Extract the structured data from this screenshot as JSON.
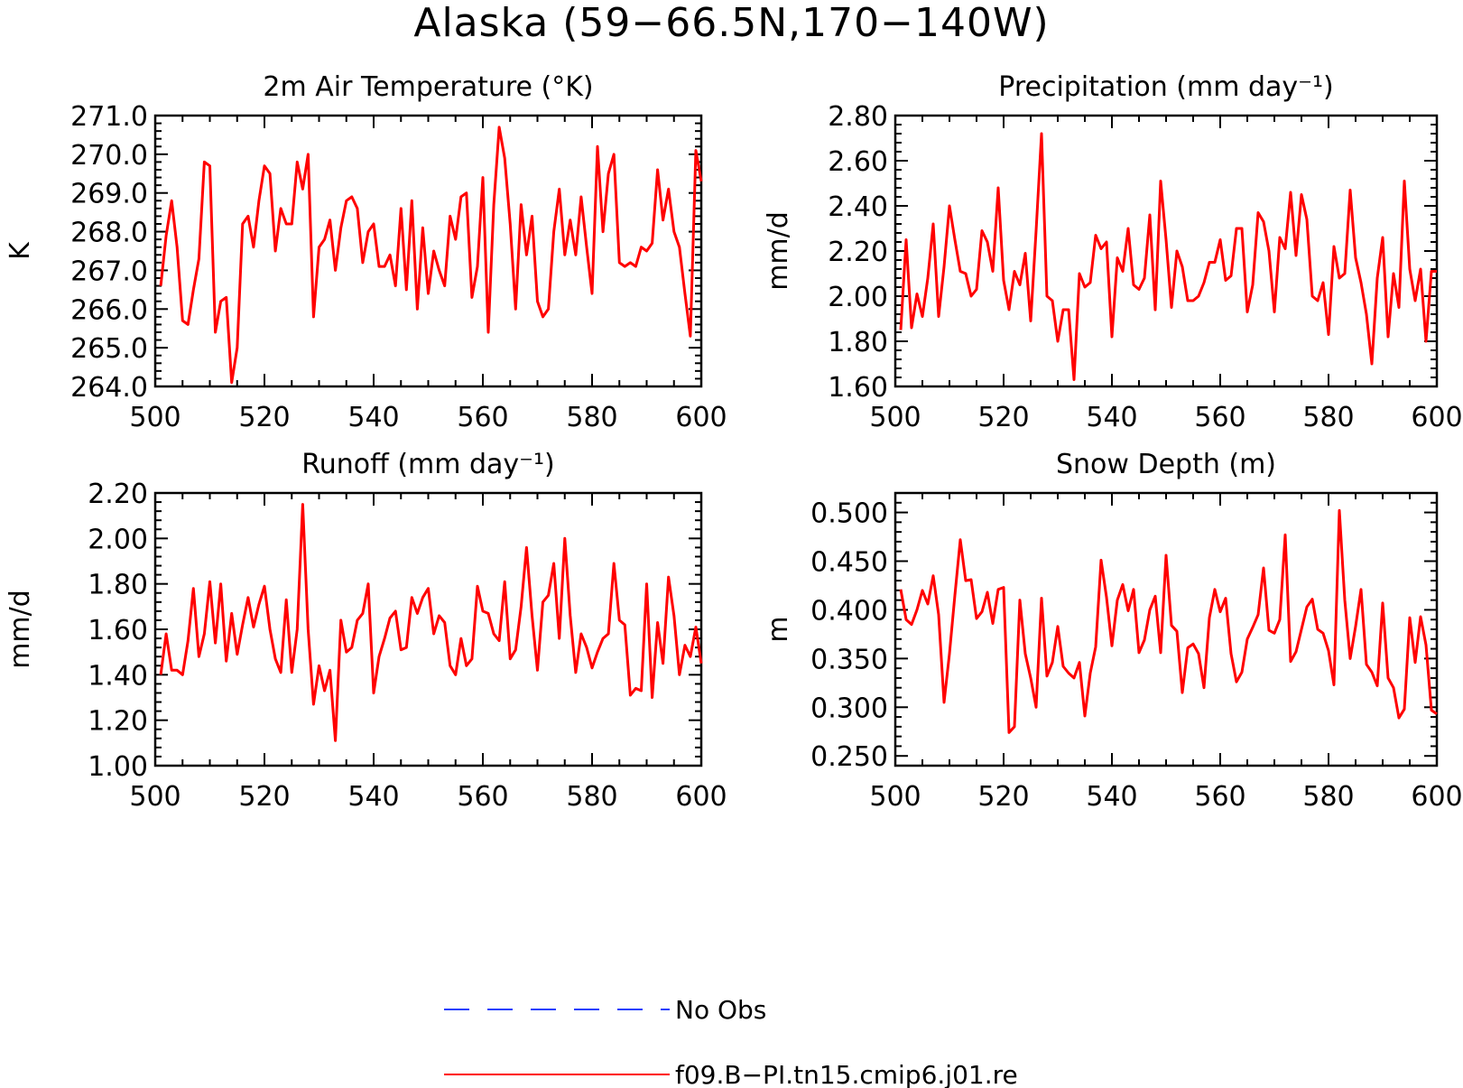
{
  "figure": {
    "title": "Alaska (59−66.5N,170−140W)"
  },
  "legend": {
    "entries": [
      {
        "label": "No Obs",
        "color": "#1f3fff",
        "dash": true
      },
      {
        "label": "f09.B−PI.tn15.cmip6.j01.re",
        "color": "#ff0000",
        "dash": false
      }
    ]
  },
  "chart_data": [
    {
      "type": "line",
      "title": "2m Air Temperature (°K)",
      "ylabel": "K",
      "xlabel": "",
      "xlim": [
        500,
        600
      ],
      "ylim": [
        264.0,
        271.0
      ],
      "xticks": [
        "500",
        "520",
        "540",
        "560",
        "580",
        "600"
      ],
      "yticks": [
        "264.0",
        "265.0",
        "266.0",
        "267.0",
        "268.0",
        "269.0",
        "270.0",
        "271.0"
      ],
      "color": "#ff0000",
      "series": [
        {
          "name": "f09.B−PI.tn15.cmip6.j01.re",
          "x_start": 501,
          "values": [
            266.6,
            267.9,
            268.8,
            267.6,
            265.7,
            265.6,
            266.5,
            267.3,
            269.8,
            269.7,
            265.4,
            266.2,
            266.3,
            264.1,
            265.0,
            268.2,
            268.4,
            267.6,
            268.8,
            269.7,
            269.5,
            267.5,
            268.6,
            268.2,
            268.2,
            269.8,
            269.1,
            270.0,
            265.8,
            267.6,
            267.8,
            268.3,
            267.0,
            268.1,
            268.8,
            268.9,
            268.6,
            267.2,
            268.0,
            268.2,
            267.1,
            267.1,
            267.4,
            266.6,
            268.6,
            266.5,
            268.8,
            266.0,
            268.1,
            266.4,
            267.5,
            267.0,
            266.6,
            268.4,
            267.8,
            268.9,
            269.0,
            266.3,
            267.1,
            269.4,
            265.4,
            268.7,
            270.7,
            269.9,
            268.2,
            266.0,
            268.7,
            267.4,
            268.4,
            266.2,
            265.8,
            266.0,
            268.0,
            269.1,
            267.4,
            268.3,
            267.4,
            268.9,
            267.6,
            266.4,
            270.2,
            268.0,
            269.5,
            270.0,
            267.2,
            267.1,
            267.2,
            267.1,
            267.6,
            267.5,
            267.7,
            269.6,
            268.3,
            269.1,
            268.0,
            267.6,
            266.4,
            265.3,
            270.1,
            269.3
          ]
        }
      ]
    },
    {
      "type": "line",
      "title": "Precipitation (mm day⁻¹)",
      "ylabel": "mm/d",
      "xlabel": "",
      "xlim": [
        500,
        600
      ],
      "ylim": [
        1.6,
        2.8
      ],
      "xticks": [
        "500",
        "520",
        "540",
        "560",
        "580",
        "600"
      ],
      "yticks": [
        "1.60",
        "1.80",
        "2.00",
        "2.20",
        "2.40",
        "2.60",
        "2.80"
      ],
      "color": "#ff0000",
      "series": [
        {
          "name": "f09.B−PI.tn15.cmip6.j01.re",
          "x_start": 501,
          "values": [
            1.85,
            2.25,
            1.86,
            2.01,
            1.91,
            2.08,
            2.32,
            1.91,
            2.13,
            2.4,
            2.25,
            2.11,
            2.1,
            2.0,
            2.03,
            2.29,
            2.24,
            2.11,
            2.48,
            2.07,
            1.94,
            2.11,
            2.05,
            2.19,
            1.89,
            2.29,
            2.72,
            2.0,
            1.98,
            1.8,
            1.94,
            1.94,
            1.63,
            2.1,
            2.04,
            2.06,
            2.27,
            2.21,
            2.24,
            1.82,
            2.17,
            2.11,
            2.3,
            2.05,
            2.03,
            2.08,
            2.36,
            1.94,
            2.51,
            2.25,
            1.95,
            2.2,
            2.13,
            1.98,
            1.98,
            2.0,
            2.06,
            2.15,
            2.15,
            2.25,
            2.07,
            2.09,
            2.3,
            2.3,
            1.93,
            2.05,
            2.37,
            2.33,
            2.2,
            1.93,
            2.26,
            2.21,
            2.46,
            2.18,
            2.45,
            2.34,
            2.0,
            1.98,
            2.06,
            1.83,
            2.22,
            2.08,
            2.1,
            2.47,
            2.17,
            2.06,
            1.92,
            1.7,
            2.08,
            2.26,
            1.82,
            2.1,
            1.95,
            2.51,
            2.12,
            1.98,
            2.12,
            1.8,
            2.11,
            2.11
          ]
        }
      ]
    },
    {
      "type": "line",
      "title": "Runoff (mm day⁻¹)",
      "ylabel": "mm/d",
      "xlabel": "",
      "xlim": [
        500,
        600
      ],
      "ylim": [
        1.0,
        2.2
      ],
      "xticks": [
        "500",
        "520",
        "540",
        "560",
        "580",
        "600"
      ],
      "yticks": [
        "1.00",
        "1.20",
        "1.40",
        "1.60",
        "1.80",
        "2.00",
        "2.20"
      ],
      "color": "#ff0000",
      "series": [
        {
          "name": "f09.B−PI.tn15.cmip6.j01.re",
          "x_start": 501,
          "values": [
            1.4,
            1.58,
            1.42,
            1.42,
            1.4,
            1.55,
            1.78,
            1.48,
            1.58,
            1.81,
            1.54,
            1.8,
            1.46,
            1.67,
            1.49,
            1.62,
            1.74,
            1.61,
            1.71,
            1.79,
            1.6,
            1.47,
            1.41,
            1.73,
            1.41,
            1.6,
            2.15,
            1.6,
            1.27,
            1.44,
            1.33,
            1.42,
            1.11,
            1.64,
            1.5,
            1.52,
            1.64,
            1.67,
            1.8,
            1.32,
            1.48,
            1.56,
            1.65,
            1.68,
            1.51,
            1.52,
            1.74,
            1.67,
            1.74,
            1.78,
            1.58,
            1.66,
            1.63,
            1.44,
            1.4,
            1.56,
            1.44,
            1.47,
            1.79,
            1.68,
            1.67,
            1.58,
            1.55,
            1.81,
            1.47,
            1.51,
            1.7,
            1.96,
            1.66,
            1.42,
            1.72,
            1.75,
            1.89,
            1.56,
            2.0,
            1.66,
            1.41,
            1.58,
            1.52,
            1.43,
            1.5,
            1.56,
            1.58,
            1.89,
            1.64,
            1.62,
            1.31,
            1.34,
            1.33,
            1.8,
            1.3,
            1.63,
            1.45,
            1.83,
            1.66,
            1.4,
            1.53,
            1.48,
            1.61,
            1.45
          ]
        }
      ]
    },
    {
      "type": "line",
      "title": "Snow Depth (m)",
      "ylabel": "m",
      "xlabel": "",
      "xlim": [
        500,
        600
      ],
      "ylim": [
        0.24,
        0.52
      ],
      "xticks": [
        "500",
        "520",
        "540",
        "560",
        "580",
        "600"
      ],
      "yticks": [
        "0.250",
        "0.300",
        "0.350",
        "0.400",
        "0.450",
        "0.500"
      ],
      "color": "#ff0000",
      "series": [
        {
          "name": "f09.B−PI.tn15.cmip6.j01.re",
          "x_start": 501,
          "values": [
            0.421,
            0.39,
            0.385,
            0.4,
            0.42,
            0.406,
            0.435,
            0.395,
            0.305,
            0.355,
            0.415,
            0.472,
            0.43,
            0.431,
            0.391,
            0.398,
            0.418,
            0.386,
            0.421,
            0.423,
            0.274,
            0.28,
            0.41,
            0.355,
            0.33,
            0.3,
            0.412,
            0.332,
            0.346,
            0.383,
            0.342,
            0.335,
            0.33,
            0.346,
            0.291,
            0.335,
            0.362,
            0.451,
            0.413,
            0.363,
            0.41,
            0.426,
            0.399,
            0.421,
            0.356,
            0.369,
            0.4,
            0.414,
            0.356,
            0.456,
            0.384,
            0.378,
            0.315,
            0.361,
            0.365,
            0.355,
            0.32,
            0.392,
            0.421,
            0.398,
            0.412,
            0.355,
            0.326,
            0.336,
            0.37,
            0.382,
            0.395,
            0.443,
            0.379,
            0.376,
            0.39,
            0.477,
            0.347,
            0.357,
            0.38,
            0.403,
            0.411,
            0.38,
            0.376,
            0.358,
            0.323,
            0.502,
            0.41,
            0.35,
            0.383,
            0.421,
            0.344,
            0.336,
            0.322,
            0.407,
            0.33,
            0.32,
            0.289,
            0.298,
            0.392,
            0.346,
            0.393,
            0.364,
            0.297,
            0.293
          ]
        }
      ]
    }
  ]
}
